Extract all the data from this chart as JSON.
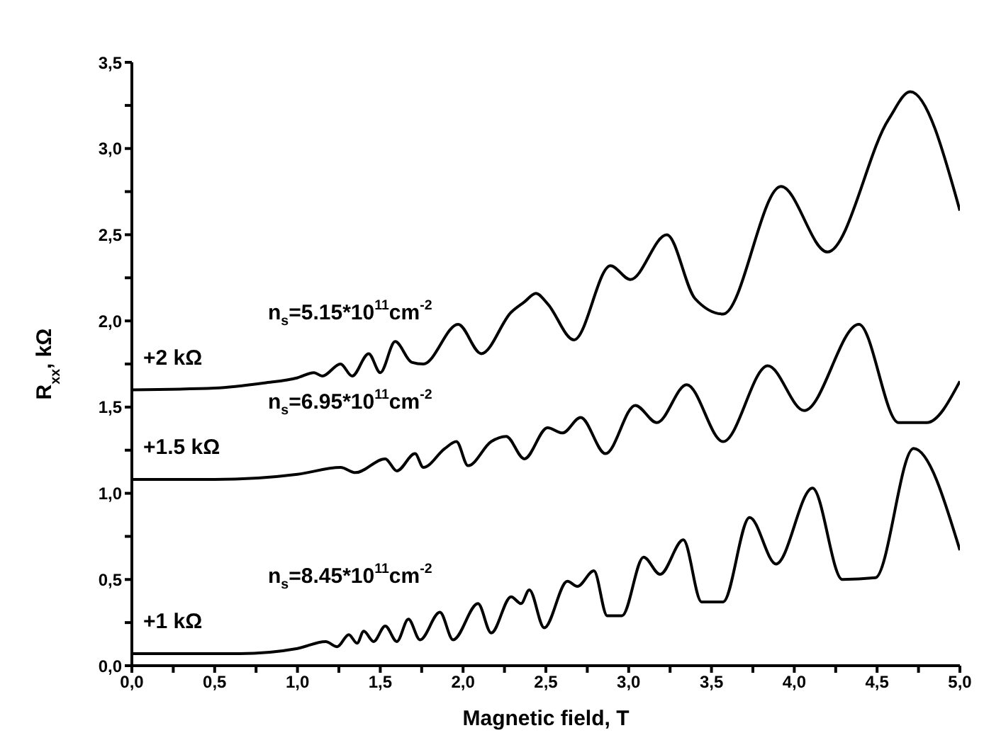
{
  "chart_data": {
    "type": "line",
    "xlabel": "Magnetic field, T",
    "ylabel": "R$_{xx}$, kΩ",
    "xlim": [
      0,
      5
    ],
    "ylim": [
      0,
      3.5
    ],
    "xticks": [
      {
        "value": 0,
        "label": "0,0"
      },
      {
        "value": 0.25,
        "label": null
      },
      {
        "value": 0.5,
        "label": "0,5"
      },
      {
        "value": 0.75,
        "label": null
      },
      {
        "value": 1,
        "label": "1,0"
      },
      {
        "value": 1.25,
        "label": null
      },
      {
        "value": 1.5,
        "label": "1,5"
      },
      {
        "value": 1.75,
        "label": null
      },
      {
        "value": 2,
        "label": "2,0"
      },
      {
        "value": 2.25,
        "label": null
      },
      {
        "value": 2.5,
        "label": "2,5"
      },
      {
        "value": 2.75,
        "label": null
      },
      {
        "value": 3,
        "label": "3,0"
      },
      {
        "value": 3.25,
        "label": null
      },
      {
        "value": 3.5,
        "label": "3,5"
      },
      {
        "value": 3.75,
        "label": null
      },
      {
        "value": 4,
        "label": "4,0"
      },
      {
        "value": 4.25,
        "label": null
      },
      {
        "value": 4.5,
        "label": "4,5"
      },
      {
        "value": 4.75,
        "label": null
      },
      {
        "value": 5,
        "label": "5,0"
      }
    ],
    "yticks": [
      {
        "value": 0,
        "label": "0,0"
      },
      {
        "value": 0.25,
        "label": null
      },
      {
        "value": 0.5,
        "label": "0,5"
      },
      {
        "value": 0.75,
        "label": null
      },
      {
        "value": 1,
        "label": "1,0"
      },
      {
        "value": 1.25,
        "label": null
      },
      {
        "value": 1.5,
        "label": "1,5"
      },
      {
        "value": 1.75,
        "label": null
      },
      {
        "value": 2,
        "label": "2,0"
      },
      {
        "value": 2.25,
        "label": null
      },
      {
        "value": 2.5,
        "label": "2,5"
      },
      {
        "value": 2.75,
        "label": null
      },
      {
        "value": 3,
        "label": "3,0"
      },
      {
        "value": 3.25,
        "label": null
      },
      {
        "value": 3.5,
        "label": "3,5"
      }
    ],
    "grid": false,
    "legend": false,
    "marker": "none",
    "line_style": "solid",
    "series": [
      {
        "color": "#000000",
        "x": [
          0,
          0.5,
          0.8,
          1.0,
          1.1,
          1.15,
          1.26,
          1.33,
          1.43,
          1.5,
          1.59,
          1.69,
          1.76,
          1.97,
          2.11,
          2.29,
          2.37,
          2.44,
          2.51,
          2.67,
          2.89,
          3.01,
          3.23,
          3.4,
          3.57,
          3.92,
          4.2,
          4.57,
          4.7,
          5.0
        ],
        "values": [
          1.6,
          1.61,
          1.64,
          1.67,
          1.7,
          1.68,
          1.75,
          1.68,
          1.81,
          1.7,
          1.88,
          1.76,
          1.75,
          1.98,
          1.81,
          2.05,
          2.11,
          2.16,
          2.1,
          1.89,
          2.32,
          2.24,
          2.5,
          2.13,
          2.04,
          2.78,
          2.4,
          3.17,
          3.33,
          2.64
        ]
      },
      {
        "color": "#000000",
        "x": [
          0,
          0.5,
          1.0,
          1.26,
          1.35,
          1.53,
          1.6,
          1.71,
          1.76,
          1.89,
          1.96,
          2.03,
          2.17,
          2.26,
          2.37,
          2.51,
          2.6,
          2.71,
          2.86,
          3.04,
          3.17,
          3.35,
          3.57,
          3.84,
          4.06,
          4.39,
          4.63,
          4.8,
          5.0
        ],
        "values": [
          1.08,
          1.08,
          1.11,
          1.15,
          1.12,
          1.2,
          1.13,
          1.23,
          1.15,
          1.26,
          1.3,
          1.16,
          1.3,
          1.33,
          1.2,
          1.38,
          1.35,
          1.44,
          1.23,
          1.51,
          1.41,
          1.63,
          1.3,
          1.74,
          1.48,
          1.98,
          1.41,
          1.41,
          1.65
        ]
      },
      {
        "color": "#000000",
        "x": [
          0,
          0.65,
          1.0,
          1.17,
          1.24,
          1.31,
          1.36,
          1.4,
          1.46,
          1.53,
          1.6,
          1.67,
          1.74,
          1.86,
          1.94,
          2.09,
          2.17,
          2.29,
          2.35,
          2.4,
          2.49,
          2.63,
          2.69,
          2.79,
          2.87,
          2.96,
          3.09,
          3.19,
          3.33,
          3.44,
          3.57,
          3.73,
          3.89,
          4.11,
          4.29,
          4.49,
          4.72,
          5.0
        ],
        "values": [
          0.07,
          0.07,
          0.1,
          0.14,
          0.11,
          0.18,
          0.13,
          0.2,
          0.14,
          0.23,
          0.14,
          0.27,
          0.15,
          0.31,
          0.15,
          0.36,
          0.19,
          0.4,
          0.36,
          0.44,
          0.22,
          0.49,
          0.46,
          0.55,
          0.29,
          0.29,
          0.63,
          0.53,
          0.73,
          0.37,
          0.37,
          0.86,
          0.59,
          1.03,
          0.5,
          0.51,
          1.26,
          0.67
        ]
      }
    ],
    "annotations": [
      "+2 kΩ",
      "n$_{s}$=5.15*10$^{11}$cm$^{-2}$",
      "+1.5 kΩ",
      "n$_{s}$=6.95*10$^{11}$cm$^{-2}$",
      "+1 kΩ",
      "n$_{s}$=8.45*10$^{11}$cm$^{-2}$"
    ]
  }
}
